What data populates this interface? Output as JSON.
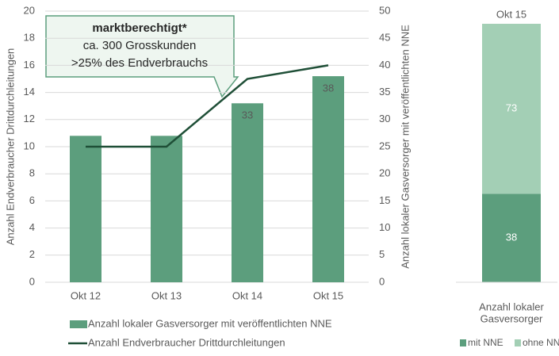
{
  "chart_data": [
    {
      "type": "combo",
      "categories": [
        "Okt 12",
        "Okt 13",
        "Okt 14",
        "Okt 15"
      ],
      "series": [
        {
          "name": "Anzahl lokaler Gasversorger mit veröffentlichten NNE",
          "type": "bar",
          "axis": "y2",
          "color": "#5c9e7d",
          "values": [
            27,
            27,
            33,
            38
          ],
          "value_labels": [
            null,
            null,
            "33",
            "38"
          ]
        },
        {
          "name": "Anzahl Endverbraucher Drittdurchleitungen",
          "type": "line",
          "axis": "y",
          "color": "#1f4f37",
          "values": [
            10,
            10,
            15,
            16
          ]
        }
      ],
      "ylabel": "Anzahl Endverbraucher Drittdurchleitungen",
      "y2label": "Anzahl lokaler Gasversorger mit veröffentlichten NNE",
      "ylim": [
        0,
        20
      ],
      "yticks": [
        0,
        2,
        4,
        6,
        8,
        10,
        12,
        14,
        16,
        18,
        20
      ],
      "y2lim": [
        0,
        50
      ],
      "y2ticks": [
        0,
        5,
        10,
        15,
        20,
        25,
        30,
        35,
        40,
        45,
        50
      ],
      "grid": true,
      "legend": "bottom",
      "annotation": {
        "lines": [
          "marktberechtigt*",
          "ca. 300 Grosskunden",
          ">25% des Endverbrauchs"
        ]
      }
    },
    {
      "type": "stacked_bar",
      "categories": [
        "Okt 15"
      ],
      "xlabel": [
        "Anzahl lokaler",
        "Gasversorger"
      ],
      "series": [
        {
          "name": "mit NNE",
          "color": "#5c9e7d",
          "values": [
            38
          ]
        },
        {
          "name": "ohne NNE",
          "color": "#a3cfb5",
          "values": [
            73
          ]
        }
      ],
      "legend": "bottom"
    }
  ]
}
